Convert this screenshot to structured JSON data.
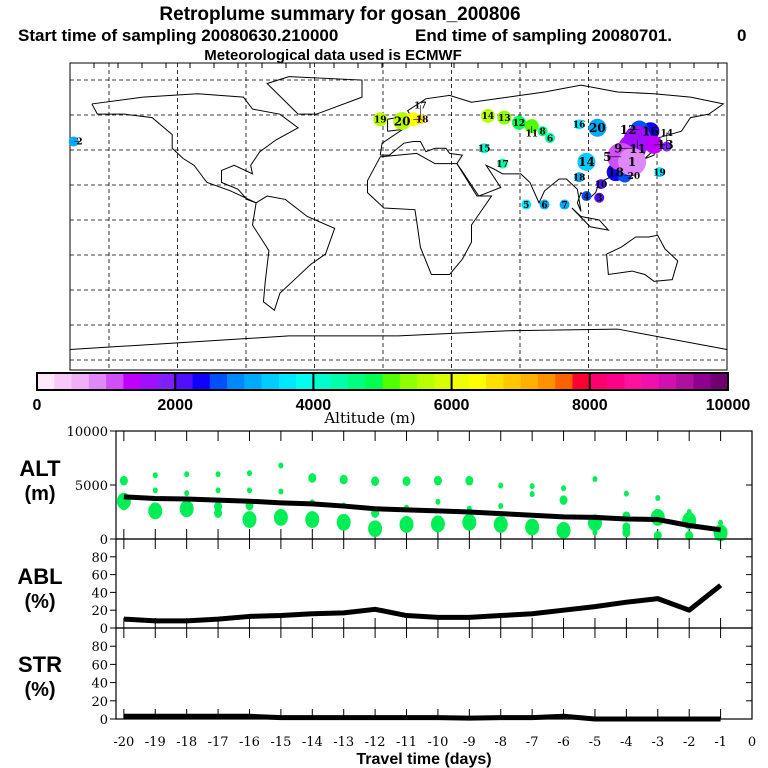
{
  "titles": {
    "line1": "Retroplume summary for gosan_200806",
    "line2a": "Start time of sampling 20080630.210000",
    "line2b": "End time of sampling 20080701.",
    "line2c": "0",
    "line3": "Meteorological data used is ECMWF"
  },
  "chart_data": [
    {
      "type": "scatter",
      "name": "retroplume-map",
      "xlabel": "Longitude",
      "ylabel": "Latitude",
      "xlim": [
        -180,
        180
      ],
      "ylim": [
        -90,
        90
      ],
      "grid": true,
      "points": [
        {
          "label": "19",
          "lon": -10,
          "lat": 57,
          "alt": 5500,
          "size": 2
        },
        {
          "label": "20",
          "lon": 2,
          "lat": 56,
          "alt": 5700,
          "size": 3
        },
        {
          "label": "18",
          "lon": 8,
          "lat": 57,
          "alt": 6300,
          "size": 2
        },
        {
          "label": "17",
          "lon": 12,
          "lat": 57,
          "alt": 6700,
          "size": 1
        },
        {
          "label": "14",
          "lon": 49,
          "lat": 59,
          "alt": 5500,
          "size": 2
        },
        {
          "label": "13",
          "lon": 58,
          "lat": 58,
          "alt": 5300,
          "size": 2
        },
        {
          "label": "12",
          "lon": 66,
          "lat": 55,
          "alt": 4900,
          "size": 2
        },
        {
          "label": "11",
          "lon": 73,
          "lat": 53,
          "alt": 5000,
          "size": 2
        },
        {
          "label": "8",
          "lon": 79,
          "lat": 50,
          "alt": 4500,
          "size": 1
        },
        {
          "label": "6",
          "lon": 83,
          "lat": 46,
          "alt": 4300,
          "size": 1
        },
        {
          "label": "15",
          "lon": 47,
          "lat": 40,
          "alt": 4100,
          "size": 1
        },
        {
          "label": "17",
          "lon": 57,
          "lat": 31,
          "alt": 4300,
          "size": 1
        },
        {
          "label": "16",
          "lon": 99,
          "lat": 54,
          "alt": 3500,
          "size": 1
        },
        {
          "label": "20",
          "lon": 109,
          "lat": 52,
          "alt": 3000,
          "size": 3
        },
        {
          "label": "14",
          "lon": 103,
          "lat": 32,
          "alt": 3300,
          "size": 3
        },
        {
          "label": "18",
          "lon": 99,
          "lat": 23,
          "alt": 3000,
          "size": 1
        },
        {
          "label": "18",
          "lon": 119,
          "lat": 26,
          "alt": 2400,
          "size": 3
        },
        {
          "label": "20",
          "lon": 124,
          "lat": 24,
          "alt": 2500,
          "size": 2
        },
        {
          "label": "16",
          "lon": 138,
          "lat": 50,
          "alt": 2400,
          "size": 3
        },
        {
          "label": "12",
          "lon": 132,
          "lat": 51,
          "alt": 2600,
          "size": 3
        },
        {
          "label": "11",
          "lon": 131,
          "lat": 45,
          "alt": 1600,
          "size": 4
        },
        {
          "label": "9",
          "lon": 128,
          "lat": 40,
          "alt": 1500,
          "size": 4
        },
        {
          "label": "13",
          "lon": 140,
          "lat": 42,
          "alt": 1400,
          "size": 3
        },
        {
          "label": "14",
          "lon": 147,
          "lat": 41,
          "alt": 1800,
          "size": 1
        },
        {
          "label": "5",
          "lon": 122,
          "lat": 35,
          "alt": 1200,
          "size": 4
        },
        {
          "label": "1",
          "lon": 128,
          "lat": 32,
          "alt": 900,
          "size": 4
        },
        {
          "label": "19",
          "lon": 143,
          "lat": 26,
          "alt": 3600,
          "size": 1
        },
        {
          "label": "10",
          "lon": 111,
          "lat": 19,
          "alt": 2100,
          "size": 1
        },
        {
          "label": "4",
          "lon": 103,
          "lat": 12,
          "alt": 2700,
          "size": 1
        },
        {
          "label": "3",
          "lon": 110,
          "lat": 11,
          "alt": 2000,
          "size": 1
        },
        {
          "label": "7",
          "lon": 91,
          "lat": 7,
          "alt": 3000,
          "size": 1
        },
        {
          "label": "6",
          "lon": 80,
          "lat": 7,
          "alt": 3100,
          "size": 1
        },
        {
          "label": "5",
          "lon": 70,
          "lat": 7,
          "alt": 3500,
          "size": 1
        },
        {
          "label": "2",
          "lon": -178,
          "lat": 44,
          "alt": 3100,
          "size": 1
        }
      ]
    },
    {
      "type": "heatmap",
      "name": "altitude-colorbar",
      "xlabel": "Altitude (m)",
      "range": [
        0,
        10000
      ],
      "tick_labels": [
        "0",
        "2000",
        "4000",
        "6000",
        "8000",
        "10000"
      ],
      "tick_values": [
        0,
        2000,
        4000,
        6000,
        8000,
        10000
      ],
      "colors": [
        "#ffe8fa",
        "#f8c8f8",
        "#f0b0f8",
        "#e088f8",
        "#d050f8",
        "#c000ff",
        "#a010ff",
        "#8020ff",
        "#5010ff",
        "#1000ff",
        "#0050ff",
        "#0088ff",
        "#00aaff",
        "#00ccff",
        "#00e8ff",
        "#00ffee",
        "#00ffcc",
        "#00ffaa",
        "#00ff80",
        "#00ff50",
        "#50ff00",
        "#90ff00",
        "#b8ff00",
        "#d8ff00",
        "#f0ff00",
        "#ffff00",
        "#ffe000",
        "#ffc800",
        "#ffb000",
        "#ff9000",
        "#ff6000",
        "#ff0030",
        "#ff0070",
        "#ff0088",
        "#ff10a0",
        "#f010b0",
        "#d010b0",
        "#b010a0",
        "#900090",
        "#700070"
      ]
    },
    {
      "type": "line",
      "name": "alt-panel",
      "ylabel": "ALT",
      "yunit": "(m)",
      "ylim": [
        0,
        10000
      ],
      "ytick_labels": [
        "0",
        "5000",
        "10000"
      ],
      "ytick_values": [
        0,
        5000,
        10000
      ],
      "x": [
        -20,
        -19,
        -18,
        -17,
        -16,
        -15,
        -14,
        -13,
        -12,
        -11,
        -10,
        -9,
        -8,
        -7,
        -6,
        -5,
        -4,
        -3,
        -2,
        -1
      ],
      "values": [
        3900,
        3750,
        3700,
        3600,
        3500,
        3350,
        3250,
        3050,
        2800,
        2700,
        2600,
        2500,
        2350,
        2200,
        2050,
        2000,
        1850,
        1800,
        1250,
        850
      ],
      "cluster_color": "#00ee55",
      "clusters": [
        {
          "day": -20,
          "alt": 5400,
          "size": 2
        },
        {
          "day": -20,
          "alt": 3500,
          "size": 3
        },
        {
          "day": -20,
          "alt": 3100,
          "size": 2
        },
        {
          "day": -19,
          "alt": 5900,
          "size": 1
        },
        {
          "day": -19,
          "alt": 4500,
          "size": 1
        },
        {
          "day": -19,
          "alt": 2600,
          "size": 3
        },
        {
          "day": -18,
          "alt": 6000,
          "size": 1
        },
        {
          "day": -18,
          "alt": 4250,
          "size": 1
        },
        {
          "day": -18,
          "alt": 2800,
          "size": 3
        },
        {
          "day": -17,
          "alt": 6000,
          "size": 1
        },
        {
          "day": -17,
          "alt": 4500,
          "size": 1
        },
        {
          "day": -17,
          "alt": 3000,
          "size": 2
        },
        {
          "day": -17,
          "alt": 2400,
          "size": 2
        },
        {
          "day": -16,
          "alt": 6100,
          "size": 1
        },
        {
          "day": -16,
          "alt": 4500,
          "size": 1
        },
        {
          "day": -16,
          "alt": 3100,
          "size": 2
        },
        {
          "day": -16,
          "alt": 1800,
          "size": 3
        },
        {
          "day": -15,
          "alt": 6800,
          "size": 1
        },
        {
          "day": -15,
          "alt": 4400,
          "size": 1
        },
        {
          "day": -15,
          "alt": 2000,
          "size": 3
        },
        {
          "day": -14,
          "alt": 5650,
          "size": 2
        },
        {
          "day": -14,
          "alt": 3400,
          "size": 1
        },
        {
          "day": -14,
          "alt": 1800,
          "size": 3
        },
        {
          "day": -13,
          "alt": 5500,
          "size": 2
        },
        {
          "day": -13,
          "alt": 3100,
          "size": 1
        },
        {
          "day": -13,
          "alt": 1550,
          "size": 3
        },
        {
          "day": -12,
          "alt": 5350,
          "size": 2
        },
        {
          "day": -12,
          "alt": 2400,
          "size": 2
        },
        {
          "day": -12,
          "alt": 950,
          "size": 3
        },
        {
          "day": -11,
          "alt": 5350,
          "size": 2
        },
        {
          "day": -11,
          "alt": 2900,
          "size": 1
        },
        {
          "day": -11,
          "alt": 1350,
          "size": 3
        },
        {
          "day": -10,
          "alt": 5400,
          "size": 2
        },
        {
          "day": -10,
          "alt": 3450,
          "size": 1
        },
        {
          "day": -10,
          "alt": 1400,
          "size": 3
        },
        {
          "day": -9,
          "alt": 5400,
          "size": 2
        },
        {
          "day": -9,
          "alt": 2800,
          "size": 1
        },
        {
          "day": -9,
          "alt": 1550,
          "size": 3
        },
        {
          "day": -8,
          "alt": 4950,
          "size": 1
        },
        {
          "day": -8,
          "alt": 3060,
          "size": 1
        },
        {
          "day": -8,
          "alt": 1350,
          "size": 3
        },
        {
          "day": -7,
          "alt": 4900,
          "size": 1
        },
        {
          "day": -7,
          "alt": 4150,
          "size": 1
        },
        {
          "day": -7,
          "alt": 1100,
          "size": 3
        },
        {
          "day": -6,
          "alt": 4700,
          "size": 1
        },
        {
          "day": -6,
          "alt": 3600,
          "size": 2
        },
        {
          "day": -6,
          "alt": 800,
          "size": 3
        },
        {
          "day": -5,
          "alt": 5550,
          "size": 1
        },
        {
          "day": -5,
          "alt": 1500,
          "size": 3
        },
        {
          "day": -5,
          "alt": 600,
          "size": 1
        },
        {
          "day": -4,
          "alt": 4200,
          "size": 1
        },
        {
          "day": -4,
          "alt": 2100,
          "size": 2
        },
        {
          "day": -4,
          "alt": 1100,
          "size": 2
        },
        {
          "day": -4,
          "alt": 600,
          "size": 2
        },
        {
          "day": -3,
          "alt": 3800,
          "size": 1
        },
        {
          "day": -3,
          "alt": 2000,
          "size": 3
        },
        {
          "day": -3,
          "alt": 300,
          "size": 2
        },
        {
          "day": -2,
          "alt": 2500,
          "size": 1
        },
        {
          "day": -2,
          "alt": 1700,
          "size": 3
        },
        {
          "day": -2,
          "alt": 300,
          "size": 2
        },
        {
          "day": -1,
          "alt": 1500,
          "size": 1
        },
        {
          "day": -1,
          "alt": 560,
          "size": 3
        }
      ]
    },
    {
      "type": "line",
      "name": "abl-panel",
      "ylabel": "ABL",
      "yunit": "(%)",
      "ylim": [
        0,
        100
      ],
      "ytick_labels": [
        "0",
        "20",
        "40",
        "60",
        "80"
      ],
      "ytick_values": [
        0,
        20,
        40,
        60,
        80
      ],
      "x": [
        -20,
        -19,
        -18,
        -17,
        -16,
        -15,
        -14,
        -13,
        -12,
        -11,
        -10,
        -9,
        -8,
        -7,
        -6,
        -5,
        -4,
        -3,
        -2,
        -1
      ],
      "values": [
        10,
        8,
        8,
        10,
        13,
        14,
        16,
        17,
        21,
        14,
        12,
        12,
        14,
        16,
        20,
        24,
        29,
        33,
        20,
        48
      ]
    },
    {
      "type": "line",
      "name": "str-panel",
      "ylabel": "STR",
      "yunit": "(%)",
      "ylim": [
        0,
        100
      ],
      "ytick_labels": [
        "0",
        "20",
        "40",
        "60",
        "80"
      ],
      "ytick_values": [
        0,
        20,
        40,
        60,
        80
      ],
      "x": [
        -20,
        -19,
        -18,
        -17,
        -16,
        -15,
        -14,
        -13,
        -12,
        -11,
        -10,
        -9,
        -8,
        -7,
        -6,
        -5,
        -4,
        -3,
        -2,
        -1
      ],
      "values": [
        3,
        3,
        3,
        3,
        3,
        1.5,
        1.5,
        1.5,
        1.5,
        1.5,
        1.5,
        1,
        1.5,
        1.5,
        3,
        0,
        0,
        0,
        0,
        0
      ],
      "xlabel": "Travel time (days)",
      "xlim": [
        -20.25,
        0
      ],
      "xtick_labels": [
        "-20",
        "-19",
        "-18",
        "-17",
        "-16",
        "-15",
        "-14",
        "-13",
        "-12",
        "-11",
        "-10",
        "-9",
        "-8",
        "-7",
        "-6",
        "-5",
        "-4",
        "-3",
        "-2",
        "-1",
        "0"
      ],
      "xtick_values": [
        -20,
        -19,
        -18,
        -17,
        -16,
        -15,
        -14,
        -13,
        -12,
        -11,
        -10,
        -9,
        -8,
        -7,
        -6,
        -5,
        -4,
        -3,
        -2,
        -1,
        0
      ]
    }
  ]
}
